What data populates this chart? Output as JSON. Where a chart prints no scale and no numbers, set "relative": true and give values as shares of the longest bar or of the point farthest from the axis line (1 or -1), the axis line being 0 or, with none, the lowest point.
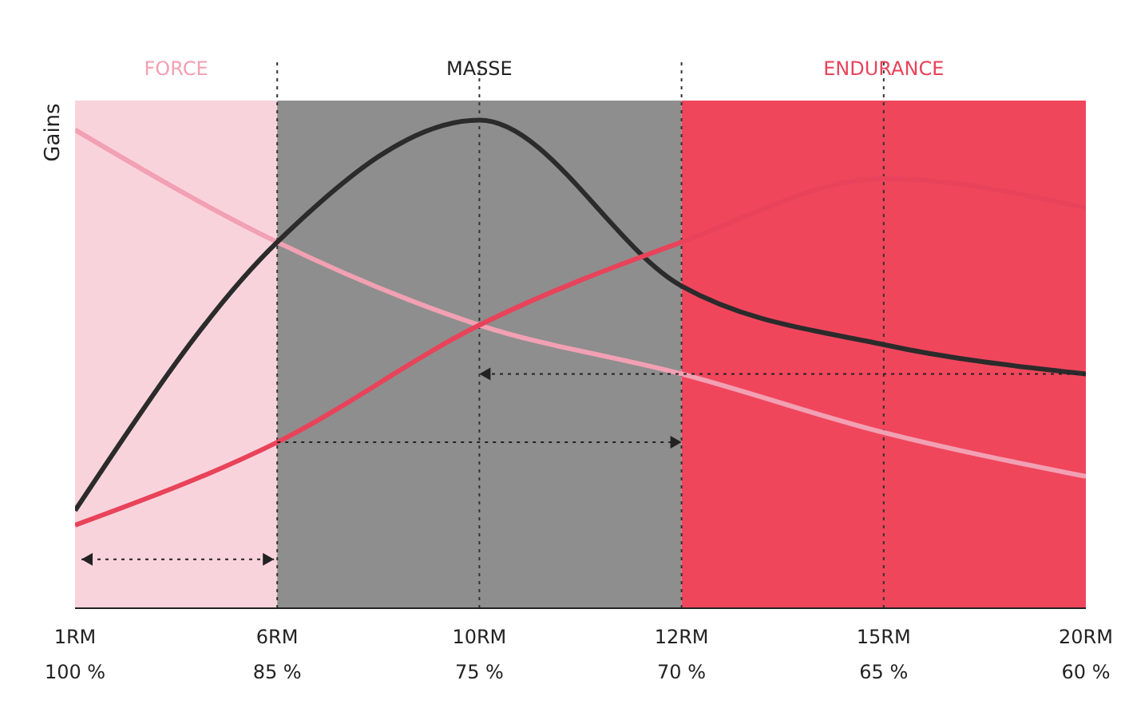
{
  "chart_data": {
    "type": "line",
    "relative": true,
    "ylabel": "Gains",
    "categories": [
      "1RM\n100 %",
      "6RM\n85 %",
      "10RM\n75 %",
      "12RM\n70 %",
      "15RM\n65 %",
      "20RM\n60 %"
    ],
    "series": [
      {
        "color": "#f2a0b3",
        "values": [
          0.98,
          0.75,
          0.58,
          0.48,
          0.36,
          0.27
        ]
      },
      {
        "color": "#2b2b2b",
        "values": [
          0.2,
          0.75,
          1.0,
          0.66,
          0.54,
          0.48
        ]
      },
      {
        "color": "#e8435a",
        "values": [
          0.17,
          0.34,
          0.58,
          0.75,
          0.88,
          0.82
        ]
      }
    ],
    "bands": [
      {
        "axis": "x",
        "from": "1RM\n100 %",
        "to": "6RM\n85 %",
        "label": "FORCE",
        "color": "#f9d3dc"
      },
      {
        "axis": "x",
        "from": "6RM\n85 %",
        "to": "12RM\n70 %",
        "label": "MASSE",
        "color": "#8e8e8e"
      },
      {
        "axis": "x",
        "from": "12RM\n70 %",
        "to": "20RM\n60 %",
        "label": "ENDURANCE",
        "color": "#f0465c"
      }
    ],
    "ref_lines": [
      {
        "axis": "x",
        "value": "6RM\n85 %",
        "color": "#333333",
        "line_style": "dotted"
      },
      {
        "axis": "x",
        "value": "10RM\n75 %",
        "color": "#333333",
        "line_style": "dotted"
      },
      {
        "axis": "x",
        "value": "12RM\n70 %",
        "color": "#333333",
        "line_style": "dotted"
      },
      {
        "axis": "x",
        "value": "15RM\n65 %",
        "color": "#333333",
        "line_style": "dotted"
      }
    ],
    "marker": "none",
    "line_style": "solid",
    "grid": false
  }
}
